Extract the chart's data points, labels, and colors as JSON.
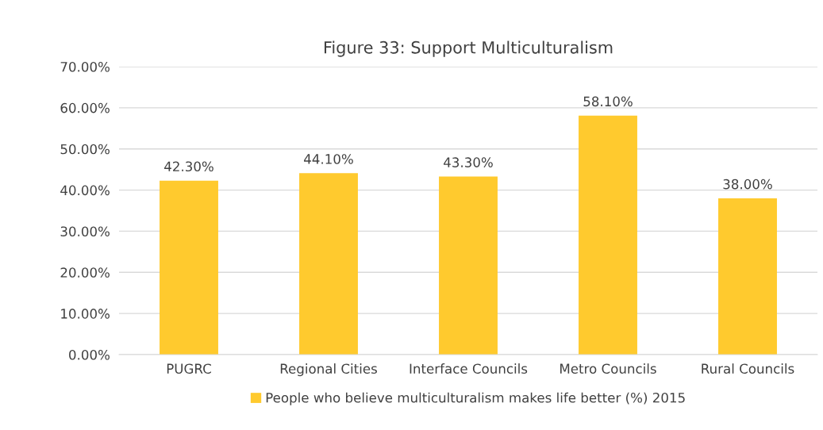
{
  "chart_data": {
    "type": "bar",
    "title": "Figure 33: Support Multiculturalism",
    "categories": [
      "PUGRC",
      "Regional Cities",
      "Interface Councils",
      "Metro Councils",
      "Rural Councils"
    ],
    "series": [
      {
        "name": "People who believe multiculturalism makes life better (%) 2015",
        "color": "#ffca2e",
        "values": [
          42.3,
          44.1,
          43.3,
          58.1,
          38.0
        ],
        "value_labels": [
          "42.30%",
          "44.10%",
          "43.30%",
          "58.10%",
          "38.00%"
        ]
      }
    ],
    "ylim": [
      0,
      70
    ],
    "yticks": [
      {
        "value": 0,
        "label": "0.00%"
      },
      {
        "value": 10,
        "label": "10.00%"
      },
      {
        "value": 20,
        "label": "20.00%"
      },
      {
        "value": 30,
        "label": "30.00%"
      },
      {
        "value": 40,
        "label": "40.00%"
      },
      {
        "value": 50,
        "label": "50.00%"
      },
      {
        "value": 60,
        "label": "60.00%"
      },
      {
        "value": 70,
        "label": "70.00%"
      }
    ],
    "grid": "y",
    "legend": "bottom"
  }
}
